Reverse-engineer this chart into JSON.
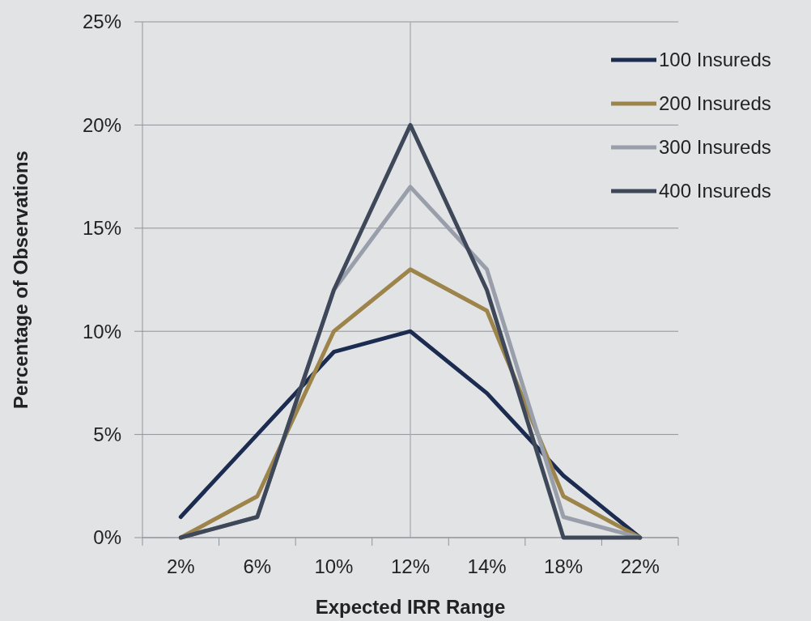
{
  "chart_data": {
    "type": "line",
    "xlabel": "Expected IRR Range",
    "ylabel": "Percentage of Observations",
    "categories": [
      "2%",
      "6%",
      "10%",
      "12%",
      "14%",
      "18%",
      "22%"
    ],
    "ylim": [
      0,
      25
    ],
    "yticks": [
      {
        "value": 0,
        "label": "0%"
      },
      {
        "value": 5,
        "label": "5%"
      },
      {
        "value": 10,
        "label": "10%"
      },
      {
        "value": 15,
        "label": "15%"
      },
      {
        "value": 20,
        "label": "20%"
      },
      {
        "value": 25,
        "label": "25%"
      }
    ],
    "grid": "y",
    "legend": "top right",
    "marker": "none",
    "line_style": "solid",
    "ref_lines": [
      {
        "axis": "x",
        "value": "12%",
        "color": "#a7abb2"
      }
    ],
    "series": [
      {
        "name": "100 Insureds",
        "color": "#1c2b50",
        "values": [
          1,
          5,
          9,
          10,
          7,
          3,
          0
        ]
      },
      {
        "name": "200 Insureds",
        "color": "#9c844a",
        "values": [
          0,
          2,
          10,
          13,
          11,
          2,
          0
        ]
      },
      {
        "name": "300 Insureds",
        "color": "#989eaa",
        "values": [
          0,
          1,
          12,
          17,
          13,
          1,
          0
        ]
      },
      {
        "name": "400 Insureds",
        "color": "#3e4859",
        "values": [
          0,
          1,
          12,
          20,
          12,
          0,
          0
        ]
      }
    ]
  }
}
